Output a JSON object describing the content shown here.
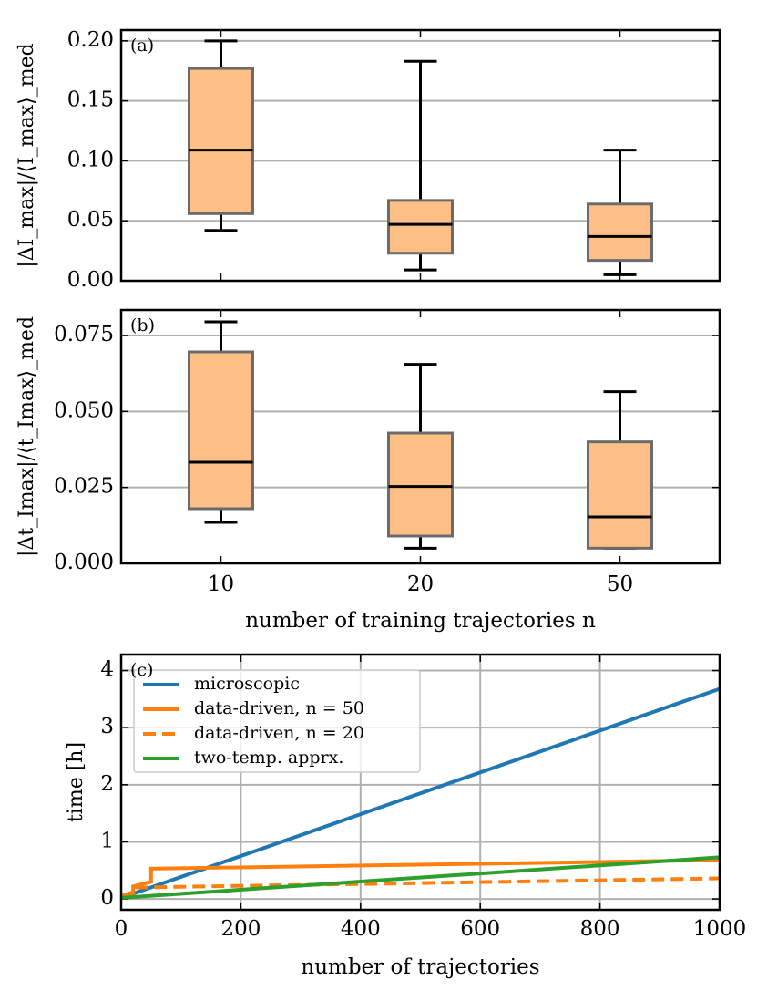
{
  "chart_data": [
    {
      "type": "box",
      "annotation": "(a)",
      "ylabel": "|ΔI_max|/⟨I_max⟩_med",
      "color": "#fdbf85",
      "edgecolor": "#6b6b6b",
      "grid": "y",
      "boxes": [
        {
          "whislo": 0.042,
          "q1": 0.056,
          "med": 0.109,
          "q3": 0.177,
          "whishi": 0.2
        },
        {
          "whislo": 0.009,
          "q1": 0.023,
          "med": 0.047,
          "q3": 0.067,
          "whishi": 0.183
        },
        {
          "whislo": 0.005,
          "q1": 0.017,
          "med": 0.037,
          "q3": 0.064,
          "whishi": 0.109
        }
      ],
      "ylim": [
        0,
        0.209
      ],
      "yticks": [
        {
          "value": 0,
          "label": "0.00"
        },
        {
          "value": 0.05,
          "label": "0.05"
        },
        {
          "value": 0.1,
          "label": "0.10"
        },
        {
          "value": 0.15,
          "label": "0.15"
        },
        {
          "value": 0.2,
          "label": "0.20"
        }
      ]
    },
    {
      "type": "box",
      "annotation": "(b)",
      "ylabel": "|Δt_Imax|/⟨t_Imax⟩_med",
      "xlabel": "number of training trajectories n",
      "color": "#fdbf85",
      "edgecolor": "#6b6b6b",
      "grid": "y",
      "categories": [
        "10",
        "20",
        "50"
      ],
      "boxes": [
        {
          "whislo": 0.0135,
          "q1": 0.018,
          "med": 0.0333,
          "q3": 0.0696,
          "whishi": 0.0795
        },
        {
          "whislo": 0.005,
          "q1": 0.009,
          "med": 0.0253,
          "q3": 0.0429,
          "whishi": 0.0655
        },
        {
          "whislo": 0.005,
          "q1": 0.005,
          "med": 0.0153,
          "q3": 0.04,
          "whishi": 0.0565
        }
      ],
      "ylim": [
        0,
        0.0834
      ],
      "yticks": [
        {
          "value": 0,
          "label": "0.000"
        },
        {
          "value": 0.025,
          "label": "0.025"
        },
        {
          "value": 0.05,
          "label": "0.050"
        },
        {
          "value": 0.075,
          "label": "0.075"
        }
      ]
    },
    {
      "type": "line",
      "annotation": "(c)",
      "ylabel": "time [h]",
      "xlabel": "number of trajectories",
      "grid": "both",
      "legend": "upper left",
      "xlim": [
        0,
        1000
      ],
      "xticks": [
        0,
        200,
        400,
        600,
        800,
        1000
      ],
      "ylim": [
        -0.19,
        4.28
      ],
      "yticks": [
        0,
        1,
        2,
        3,
        4
      ],
      "series": [
        {
          "name": "microscopic",
          "color": "#1f77b4",
          "dash": false,
          "x": [
            0,
            1000
          ],
          "values": [
            0.02,
            3.68
          ]
        },
        {
          "name": "data-driven, n = 50",
          "color": "#ff7f0e",
          "dash": false,
          "x": [
            0,
            20,
            20,
            50,
            50,
            1000
          ],
          "values": [
            0.05,
            0.1,
            0.22,
            0.3,
            0.53,
            0.68
          ]
        },
        {
          "name": "data-driven, n = 20",
          "color": "#ff7f0e",
          "dash": true,
          "x": [
            0,
            20,
            20,
            1000
          ],
          "values": [
            0.05,
            0.12,
            0.2,
            0.36
          ]
        },
        {
          "name": "two-temp. apprx.",
          "color": "#2ca02c",
          "dash": false,
          "x": [
            0,
            1000
          ],
          "values": [
            0.02,
            0.73
          ]
        }
      ]
    }
  ]
}
